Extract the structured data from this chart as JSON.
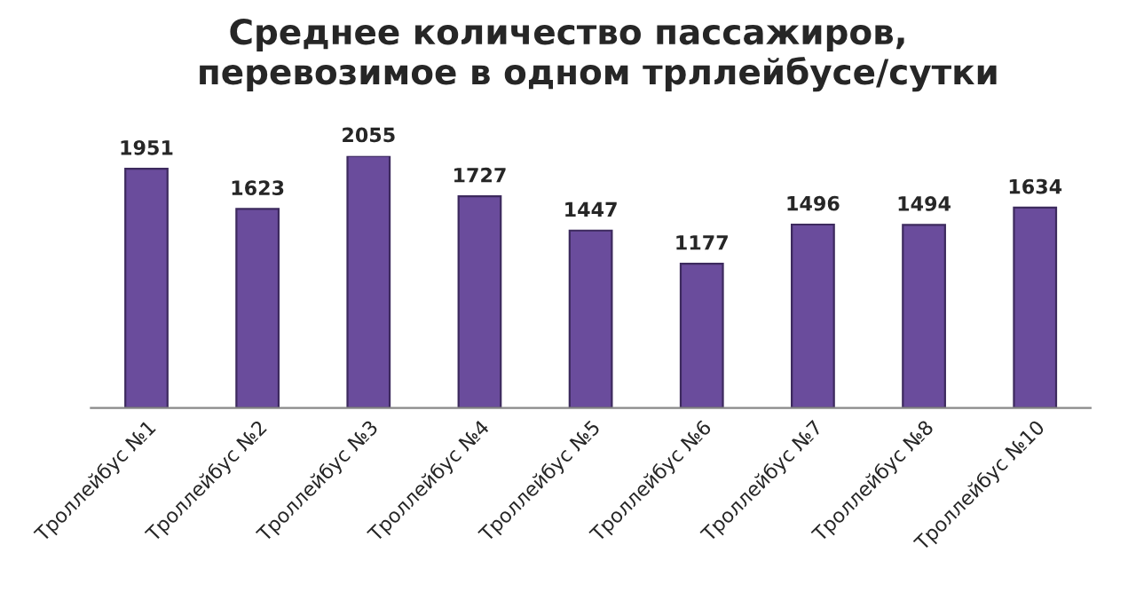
{
  "chart_data": {
    "type": "bar",
    "title": "Среднее количество пассажиров,\n     перевозимое в одном трллейбусе/сутки",
    "categories": [
      "Троллейбус №1",
      "Троллейбус №2",
      "Троллейбус №3",
      "Троллейбус №4",
      "Троллейбус №5",
      "Троллейбус №6",
      "Троллейбус №7",
      "Троллейбус №8",
      "Троллейбус №10"
    ],
    "values": [
      1951,
      1623,
      2055,
      1727,
      1447,
      1177,
      1496,
      1494,
      1634
    ],
    "color": "#6a4c9c",
    "data_labels": true
  }
}
